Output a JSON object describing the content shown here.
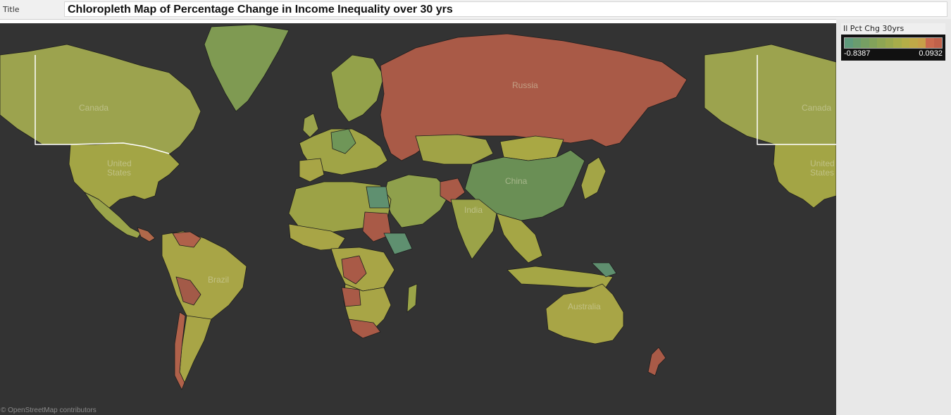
{
  "header": {
    "field_label": "Title",
    "title": "Chloropleth Map of Percentage Change in Income Inequality over 30 yrs"
  },
  "legend": {
    "title": "Il Pct Chg 30yrs",
    "min_label": "-0.8387",
    "max_label": "0.0932",
    "ramp_colors": [
      "#5f9a7c",
      "#6a9c6e",
      "#769f63",
      "#82a25a",
      "#8ea653",
      "#9aa94e",
      "#a7ad4a",
      "#b4ae47",
      "#c0a947",
      "#c8a048",
      "#ca6a4e",
      "#c0614a"
    ]
  },
  "map": {
    "background": "#333333",
    "labels": {
      "russia": "Russia",
      "canada": "Canada",
      "canada_repeat": "Canada",
      "united_states": "United States",
      "united_states_repeat": "United States",
      "china": "China",
      "india": "India",
      "brazil": "Brazil",
      "australia": "Australia"
    },
    "attribution": "© OpenStreetMap contributors",
    "colors": {
      "high": "#a95a47",
      "olive": "#8e9c48",
      "yellow_olive": "#a5a645",
      "green": "#6a8f55",
      "teal": "#5a8a6e",
      "border": "#1e1e1e",
      "us_canada_border": "#ffffff"
    }
  }
}
